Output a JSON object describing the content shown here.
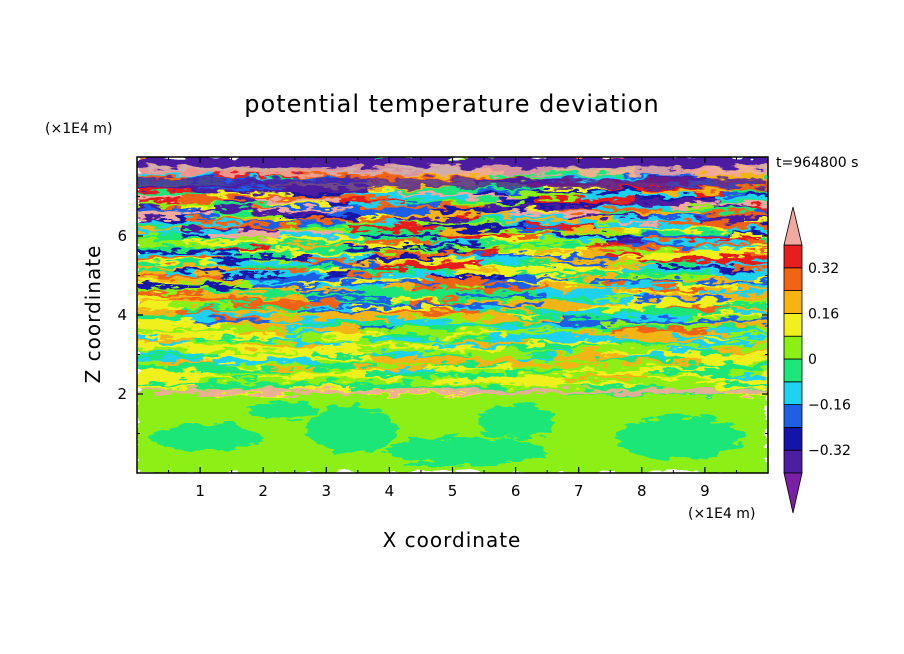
{
  "chart_data": {
    "type": "heatmap",
    "title": "potential temperature deviation",
    "time_label": "t=964800 s",
    "xlabel": "X coordinate",
    "ylabel": "Z coordinate",
    "x_units": "(×1E4 m)",
    "y_units": "(×1E4 m)",
    "xlim": [
      0,
      10
    ],
    "ylim": [
      0,
      8
    ],
    "x_ticks": [
      "1",
      "2",
      "3",
      "4",
      "5",
      "6",
      "7",
      "8",
      "9"
    ],
    "x_tick_values": [
      1,
      2,
      3,
      4,
      5,
      6,
      7,
      8,
      9
    ],
    "y_ticks": [
      "2",
      "4",
      "6"
    ],
    "y_tick_values": [
      2,
      4,
      6
    ],
    "colorbar": {
      "levels": [
        -0.48,
        -0.4,
        -0.32,
        -0.24,
        -0.16,
        -0.08,
        0,
        0.08,
        0.16,
        0.24,
        0.32,
        0.4,
        0.48
      ],
      "colors": [
        "#7a1fa6",
        "#4b1fa0",
        "#1414a8",
        "#1f5fe6",
        "#1fd2f0",
        "#1fe678",
        "#8cf014",
        "#f0f01e",
        "#f5b414",
        "#f06414",
        "#e61e1e",
        "#f0a8a0"
      ],
      "labels": [
        "0.32",
        "0.16",
        "0",
        "-0.16",
        "-0.32"
      ],
      "label_values": [
        0.32,
        0.16,
        0,
        -0.16,
        -0.32
      ]
    }
  }
}
